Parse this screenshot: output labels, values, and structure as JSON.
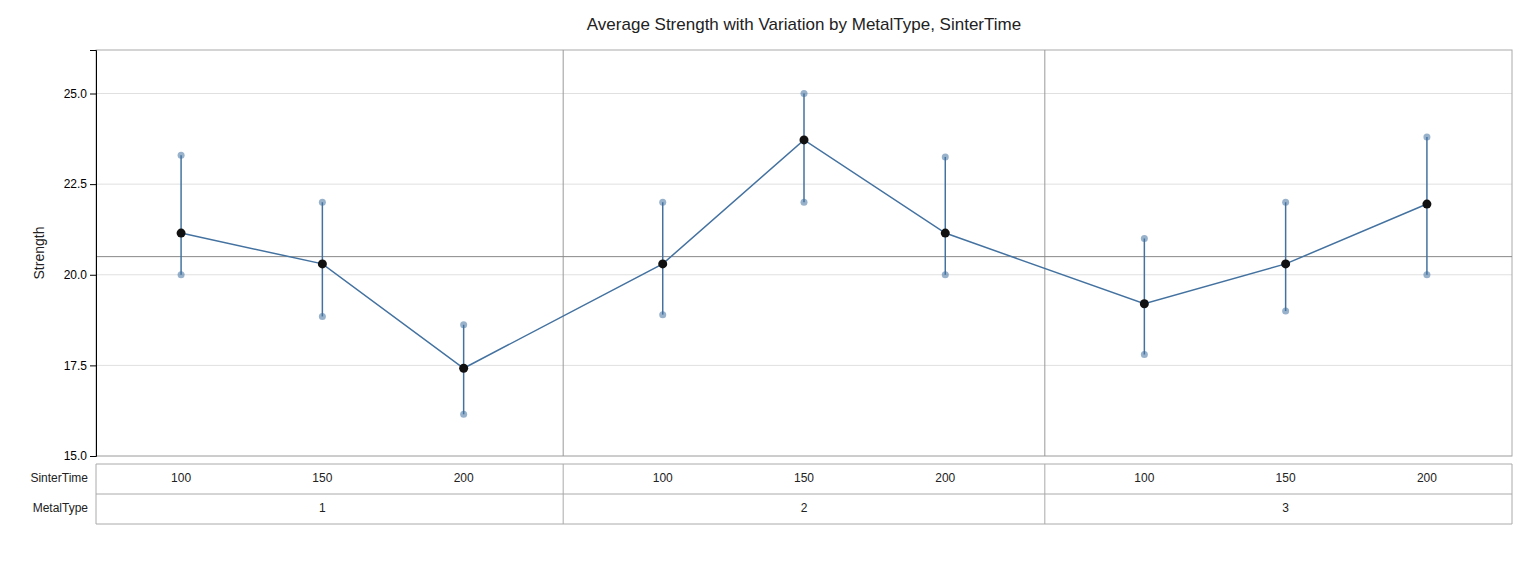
{
  "chart_data": {
    "type": "variability",
    "title": "Average Strength with Variation by MetalType, SinterTime",
    "ylabel": "Strength",
    "x_labels": [
      "SinterTime",
      "MetalType"
    ],
    "groups": [
      {
        "label": "1",
        "categories": [
          "100",
          "150",
          "200"
        ],
        "values": [
          21.15,
          20.3,
          17.42
        ],
        "lows": [
          20.0,
          18.85,
          16.15
        ],
        "highs": [
          23.3,
          22.0,
          18.62
        ]
      },
      {
        "label": "2",
        "categories": [
          "100",
          "150",
          "200"
        ],
        "values": [
          20.3,
          23.72,
          21.15
        ],
        "lows": [
          18.9,
          22.0,
          20.0
        ],
        "highs": [
          22.0,
          25.0,
          23.25
        ]
      },
      {
        "label": "3",
        "categories": [
          "100",
          "150",
          "200"
        ],
        "values": [
          19.2,
          20.3,
          21.95
        ],
        "lows": [
          17.8,
          19.0,
          20.0
        ],
        "highs": [
          21.0,
          22.0,
          23.8
        ]
      }
    ],
    "grand_mean": 20.5,
    "ylim": [
      15.0,
      26.2
    ],
    "yticks": [
      {
        "value": 15.0,
        "label": "15.0"
      },
      {
        "value": 17.5,
        "label": "17.5"
      },
      {
        "value": 20.0,
        "label": "20.0"
      },
      {
        "value": 22.5,
        "label": "22.5"
      },
      {
        "value": 25.0,
        "label": "25.0"
      }
    ],
    "grid": true,
    "color": "#4472a0"
  }
}
